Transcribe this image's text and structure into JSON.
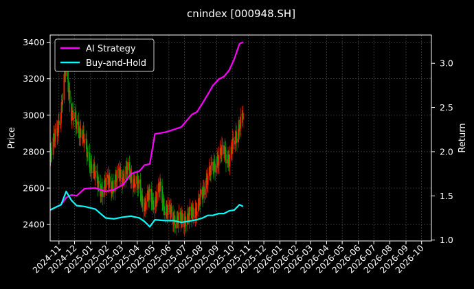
{
  "chart_data": {
    "type": "line",
    "title": "cnindex [000948.SH]",
    "xlabel": "",
    "ylabel_left": "Price",
    "ylabel_right": "Return",
    "x_start": "2024-10-15",
    "x_end": "2026-10-20",
    "ylim_left": [
      2310,
      3440
    ],
    "ylim_right": [
      0.99,
      3.32
    ],
    "yticks_left": [
      2400,
      2600,
      2800,
      3000,
      3200,
      3400
    ],
    "yticks_right": [
      "1.0",
      "1.5",
      "2.0",
      "2.5",
      "3.0"
    ],
    "xticks": [
      "2024-11",
      "2024-12",
      "2025-01",
      "2025-02",
      "2025-03",
      "2025-04",
      "2025-05",
      "2025-06",
      "2025-07",
      "2025-08",
      "2025-09",
      "2025-10",
      "2025-11",
      "2025-12",
      "2026-01",
      "2026-02",
      "2026-03",
      "2026-04",
      "2026-05",
      "2026-06",
      "2026-07",
      "2026-08",
      "2026-09",
      "2026-10"
    ],
    "grid": true,
    "legend_position": "top-left",
    "colors": {
      "ai": "#ff00ff",
      "bh": "#00ffff",
      "up": "#ff2200",
      "down": "#00aa00",
      "background": "#000000",
      "grid": "#555555"
    },
    "candles": {
      "dates": [
        "2024-10-15",
        "2024-10-25",
        "2024-11-05",
        "2024-11-15",
        "2024-11-25",
        "2024-12-05",
        "2024-12-15",
        "2024-12-25",
        "2025-01-05",
        "2025-01-15",
        "2025-01-25",
        "2025-02-05",
        "2025-02-15",
        "2025-02-25",
        "2025-03-05",
        "2025-03-15",
        "2025-03-25",
        "2025-04-05",
        "2025-04-15",
        "2025-04-25",
        "2025-05-05",
        "2025-05-15",
        "2025-05-25",
        "2025-06-05",
        "2025-06-15",
        "2025-06-25",
        "2025-07-05",
        "2025-07-15",
        "2025-07-25",
        "2025-08-05",
        "2025-08-15",
        "2025-08-25",
        "2025-09-05",
        "2025-09-15",
        "2025-09-25",
        "2025-10-05",
        "2025-10-15",
        "2025-10-22"
      ],
      "close": [
        2750,
        2900,
        3000,
        3300,
        3000,
        2950,
        2900,
        2800,
        2700,
        2630,
        2580,
        2650,
        2600,
        2690,
        2660,
        2700,
        2640,
        2600,
        2500,
        2560,
        2520,
        2600,
        2480,
        2460,
        2420,
        2420,
        2440,
        2450,
        2500,
        2560,
        2680,
        2700,
        2780,
        2800,
        2760,
        2850,
        2950,
        3000
      ]
    },
    "series": [
      {
        "name": "AI Strategy",
        "dates": [
          "2024-10-15",
          "2024-10-25",
          "2024-11-05",
          "2024-11-15",
          "2024-11-25",
          "2024-12-05",
          "2024-12-20",
          "2025-01-10",
          "2025-01-30",
          "2025-02-15",
          "2025-03-05",
          "2025-03-20",
          "2025-04-05",
          "2025-04-15",
          "2025-04-25",
          "2025-05-05",
          "2025-05-25",
          "2025-06-10",
          "2025-06-25",
          "2025-07-05",
          "2025-07-15",
          "2025-07-25",
          "2025-08-05",
          "2025-08-15",
          "2025-08-25",
          "2025-09-05",
          "2025-09-15",
          "2025-09-25",
          "2025-10-05",
          "2025-10-15",
          "2025-10-22"
        ],
        "values": [
          1.34,
          1.37,
          1.4,
          1.48,
          1.51,
          1.5,
          1.58,
          1.59,
          1.55,
          1.57,
          1.63,
          1.75,
          1.78,
          1.85,
          1.86,
          2.2,
          2.22,
          2.25,
          2.28,
          2.35,
          2.42,
          2.45,
          2.55,
          2.65,
          2.75,
          2.82,
          2.85,
          2.92,
          3.05,
          3.22,
          3.24
        ]
      },
      {
        "name": "Buy-and-Hold",
        "dates": [
          "2024-10-15",
          "2024-10-25",
          "2024-11-05",
          "2024-11-15",
          "2024-11-25",
          "2024-12-05",
          "2024-12-20",
          "2025-01-10",
          "2025-01-30",
          "2025-02-15",
          "2025-03-05",
          "2025-03-20",
          "2025-04-05",
          "2025-04-15",
          "2025-04-25",
          "2025-05-05",
          "2025-05-25",
          "2025-06-10",
          "2025-06-25",
          "2025-07-05",
          "2025-07-15",
          "2025-07-25",
          "2025-08-05",
          "2025-08-15",
          "2025-08-25",
          "2025-09-05",
          "2025-09-15",
          "2025-09-25",
          "2025-10-05",
          "2025-10-15",
          "2025-10-22"
        ],
        "values": [
          1.34,
          1.37,
          1.4,
          1.55,
          1.45,
          1.39,
          1.38,
          1.35,
          1.25,
          1.24,
          1.26,
          1.27,
          1.25,
          1.21,
          1.15,
          1.23,
          1.22,
          1.22,
          1.2,
          1.21,
          1.22,
          1.23,
          1.25,
          1.28,
          1.28,
          1.3,
          1.3,
          1.33,
          1.34,
          1.4,
          1.38
        ]
      }
    ]
  }
}
